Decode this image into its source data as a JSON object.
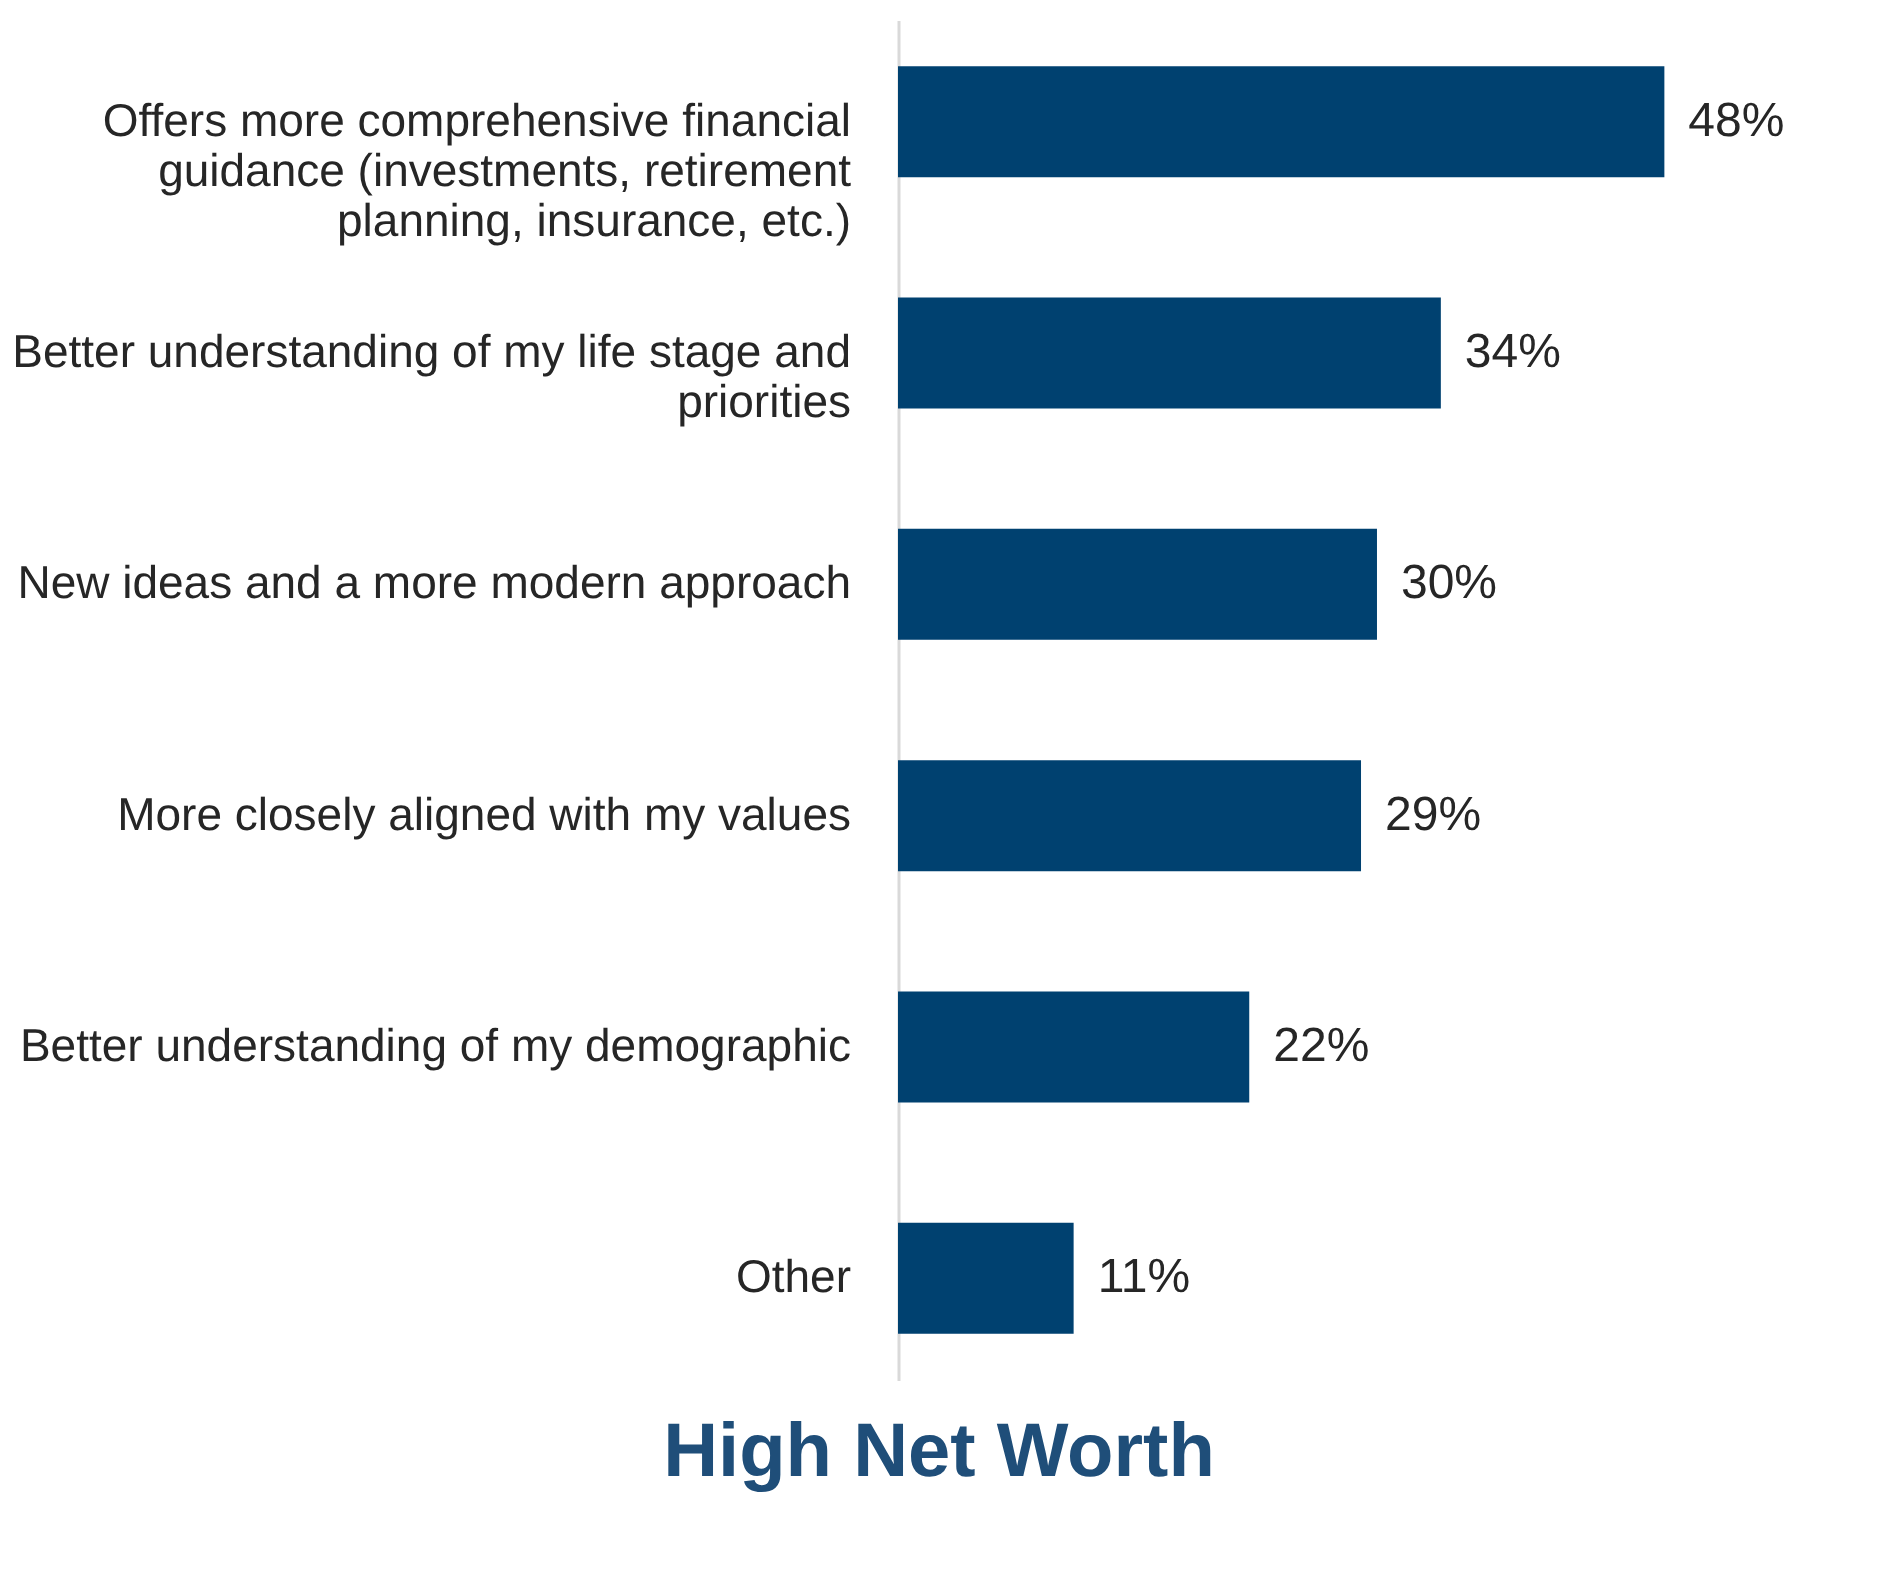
{
  "chart_data": {
    "type": "bar",
    "orientation": "horizontal",
    "title": "High Net Worth",
    "categories": [
      "Offers more comprehensive financial guidance (investments, retirement planning, insurance, etc.)",
      "Better understanding of my life stage and priorities",
      "New ideas and a more modern approach",
      "More closely aligned with my values",
      "Better understanding of my demographic",
      "Other"
    ],
    "values": [
      48,
      34,
      30,
      29,
      22,
      11
    ],
    "value_labels": [
      "48%",
      "34%",
      "30%",
      "29%",
      "22%",
      "11%"
    ],
    "color": "#004170",
    "grid": false
  }
}
